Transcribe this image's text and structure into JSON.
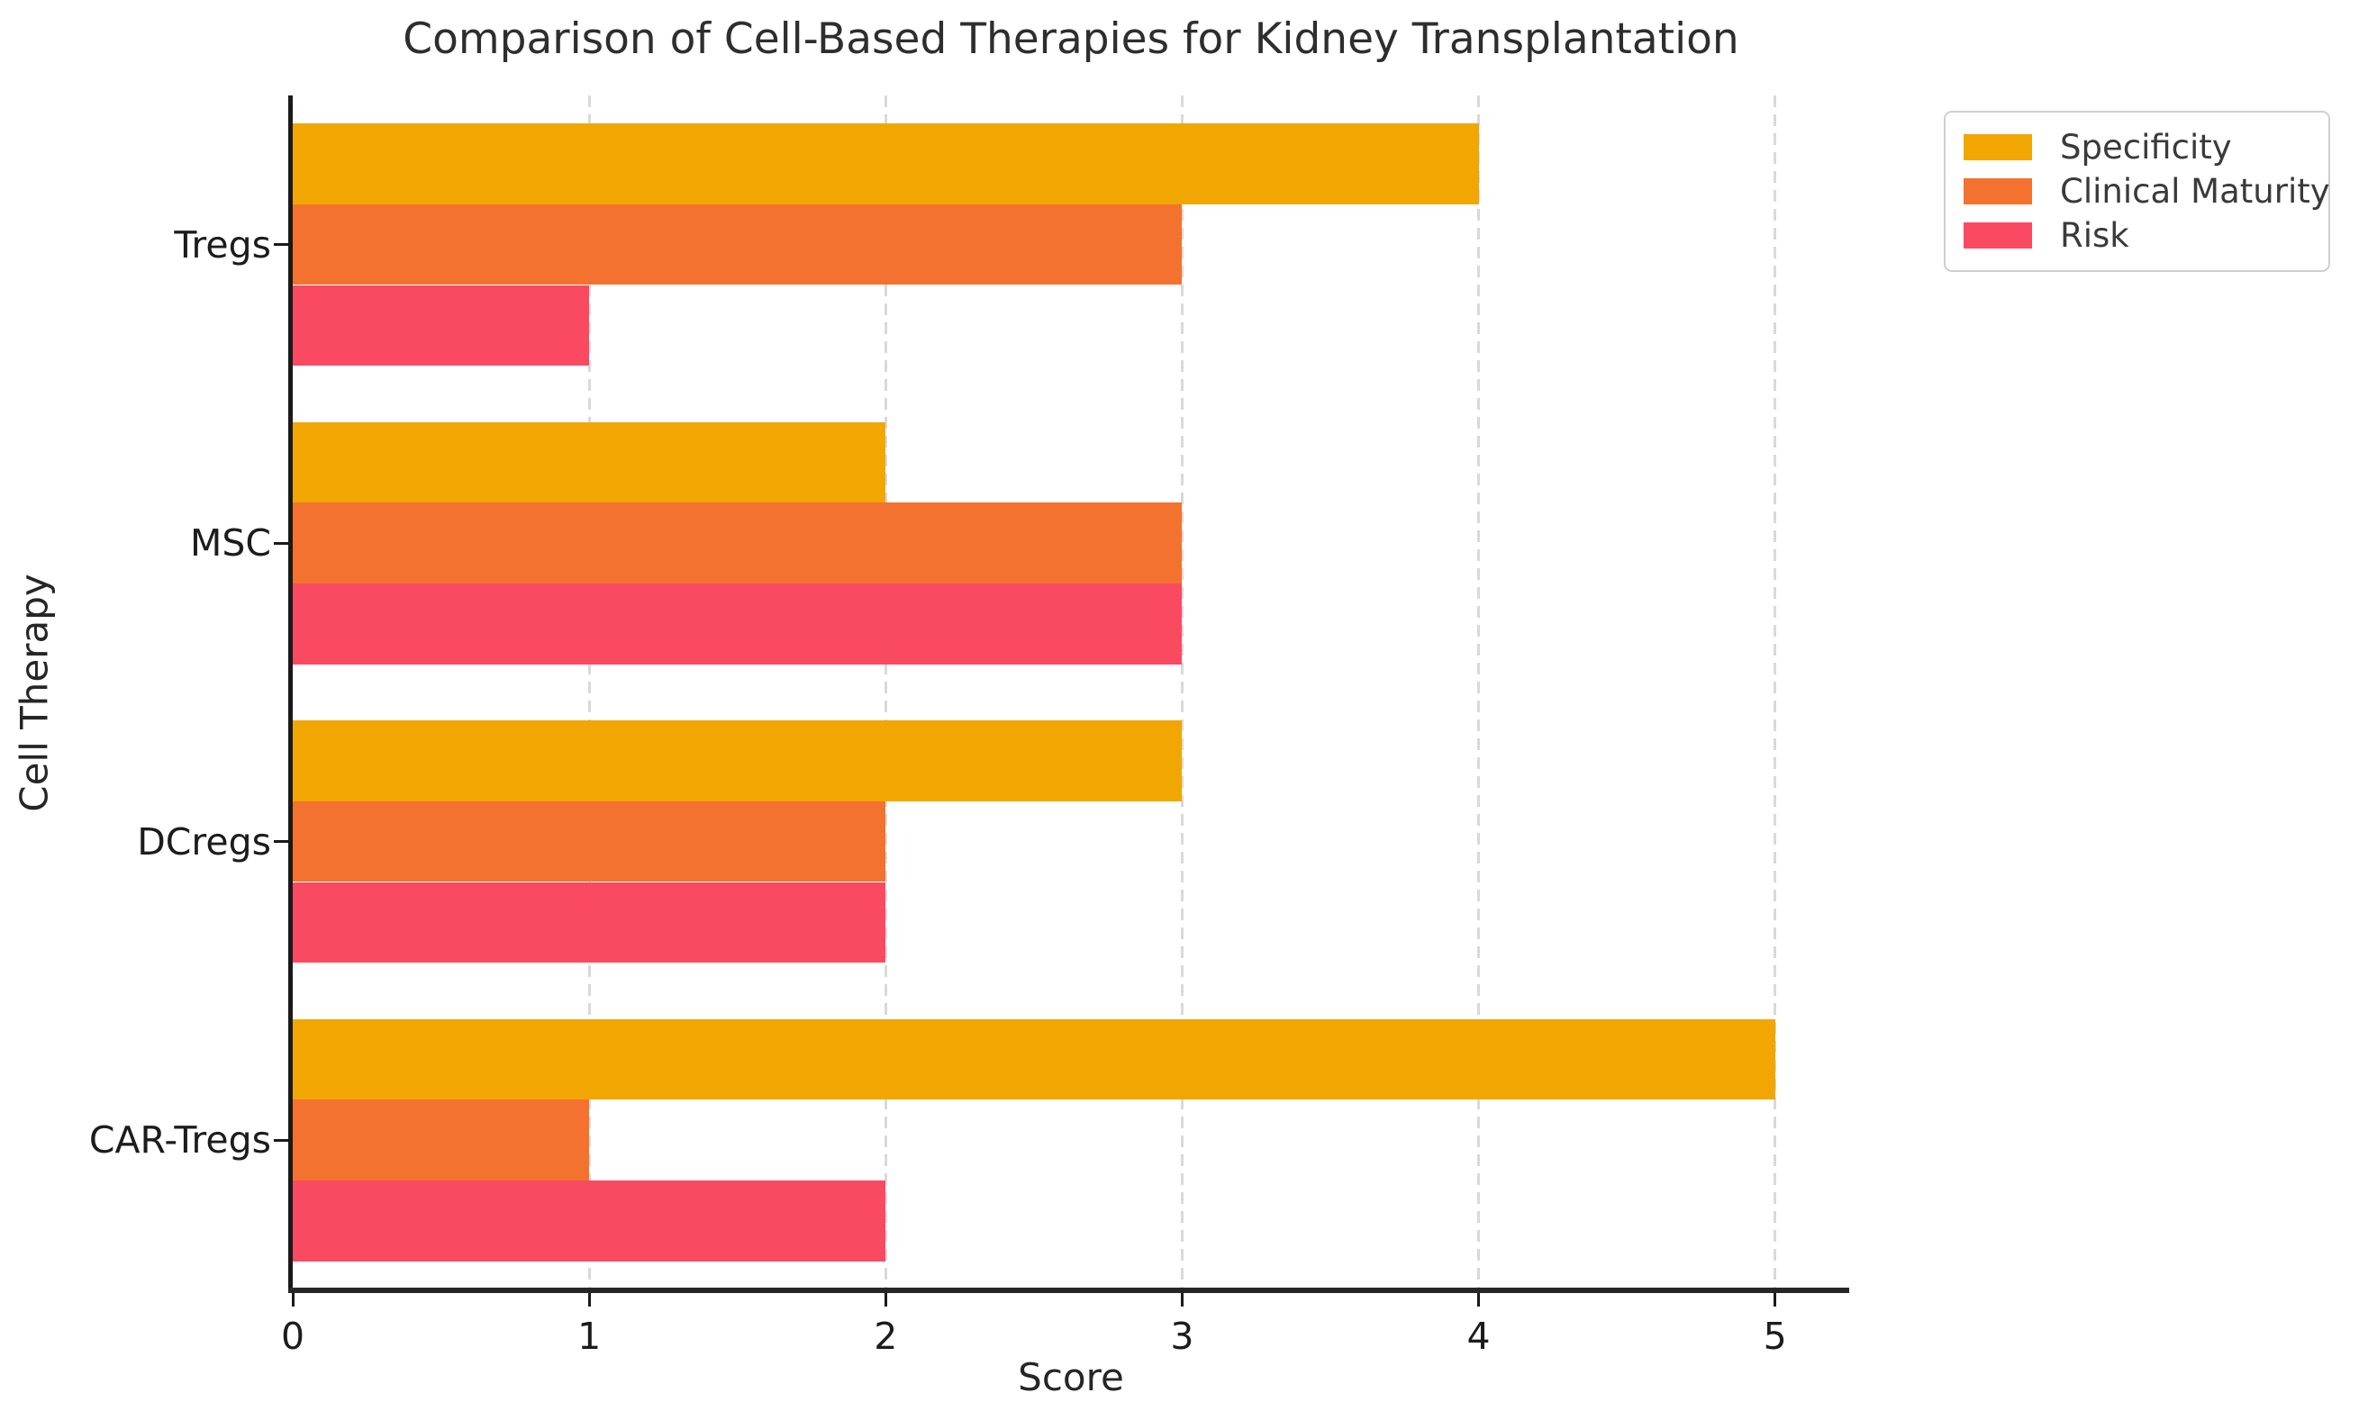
{
  "chart_data": {
    "type": "bar",
    "orientation": "horizontal",
    "title": "Comparison of Cell-Based Therapies for Kidney Transplantation",
    "xlabel": "Score",
    "ylabel": "Cell Therapy",
    "categories": [
      "Tregs",
      "MSC",
      "DCregs",
      "CAR-Tregs"
    ],
    "series": [
      {
        "name": "Specificity",
        "color": "#F2A602",
        "values": [
          4,
          2,
          3,
          5
        ]
      },
      {
        "name": "Clinical Maturity",
        "color": "#F4722F",
        "values": [
          3,
          3,
          2,
          1
        ]
      },
      {
        "name": "Risk",
        "color": "#FA4A62",
        "values": [
          1,
          3,
          2,
          2
        ]
      }
    ],
    "xticks": [
      0,
      1,
      2,
      3,
      4,
      5
    ],
    "xlim": [
      0,
      5.25
    ],
    "grid": "vertical-dashed",
    "legend_position": "upper-right-outside",
    "style": {
      "gridline_color": "#d9d9d9",
      "spine_color": "#1a1a1a",
      "title_color": "#2e2e2e",
      "tick_label_color": "#1c1c1c",
      "legend_text_color": "#3a3a3a",
      "background": "#ffffff"
    }
  }
}
